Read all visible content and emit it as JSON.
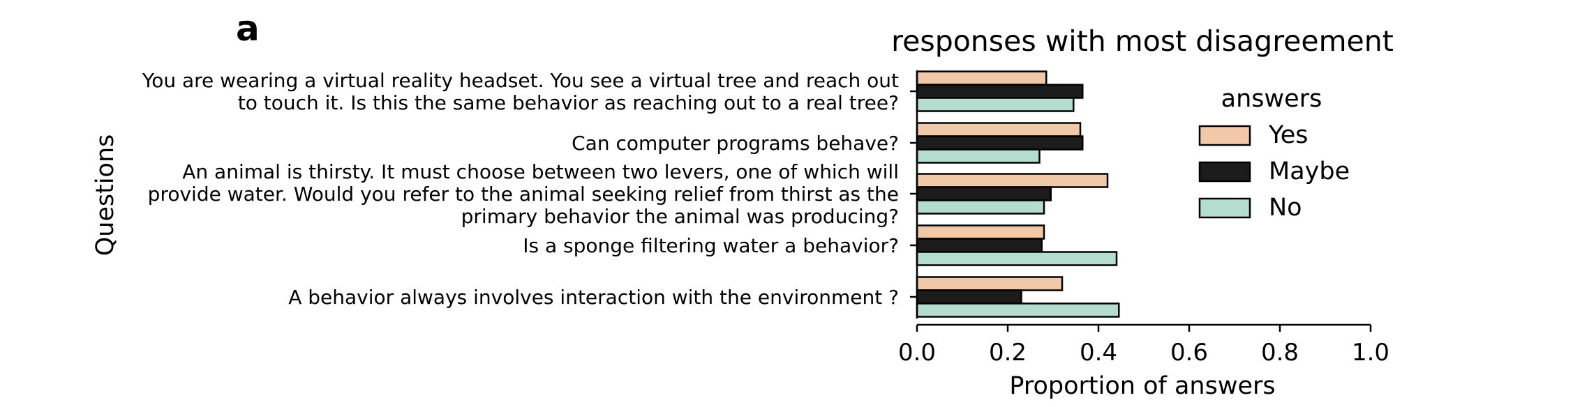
{
  "panel_label": "a",
  "chart_data": {
    "type": "bar",
    "orientation": "horizontal",
    "title": "responses with most disagreement",
    "xlabel": "Proportion of answers",
    "ylabel": "Questions",
    "xlim": [
      0,
      1.0
    ],
    "xticks": [
      "0.0",
      "0.2",
      "0.4",
      "0.6",
      "0.8",
      "1.0"
    ],
    "grid": false,
    "legend_placement": "right",
    "legend_title": "answers",
    "categories": [
      [
        "You are wearing a virtual reality headset. You see a virtual tree and reach out",
        "to touch it. Is this the same behavior as reaching out to a real tree?"
      ],
      [
        "Can computer programs behave?"
      ],
      [
        "An animal is thirsty. It must choose between two levers, one of which will",
        "provide water. Would you refer to the animal seeking relief from thirst as the",
        "primary behavior the animal was producing?"
      ],
      [
        "Is a sponge filtering water a behavior?"
      ],
      [
        "A behavior always involves interaction with the environment ?"
      ]
    ],
    "series": [
      {
        "name": "Yes",
        "color": "#f2c9a8",
        "values": [
          0.285,
          0.36,
          0.42,
          0.28,
          0.32
        ]
      },
      {
        "name": "Maybe",
        "color": "#1c1c1c",
        "values": [
          0.365,
          0.365,
          0.295,
          0.275,
          0.23
        ]
      },
      {
        "name": "No",
        "color": "#b4ddcf",
        "values": [
          0.345,
          0.27,
          0.28,
          0.44,
          0.445
        ]
      }
    ]
  }
}
